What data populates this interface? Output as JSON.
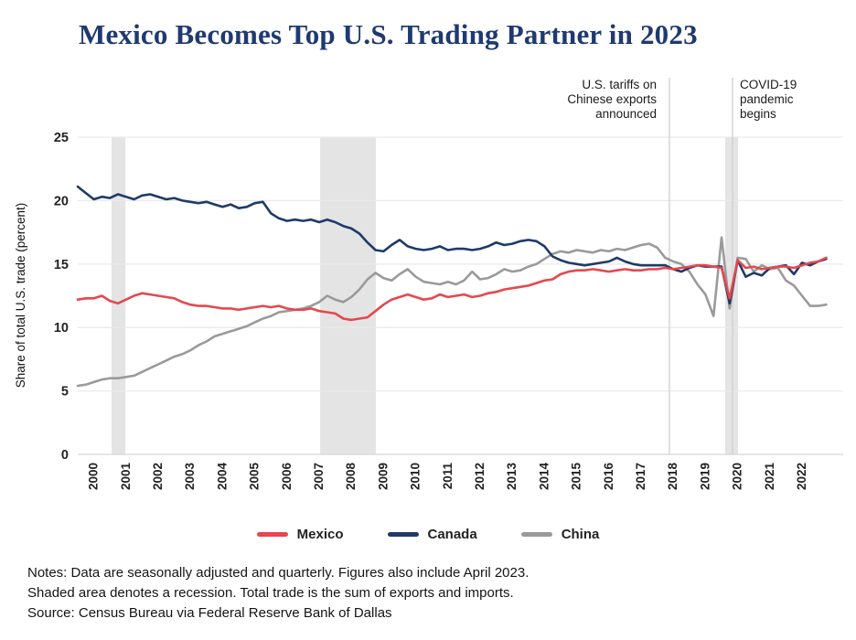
{
  "title": "Mexico Becomes Top U.S. Trading Partner in 2023",
  "chart_data": {
    "type": "line",
    "title": "Mexico Becomes Top U.S. Trading Partner in 2023",
    "xlabel": "",
    "ylabel": "Share of total U.S. trade (percent)",
    "ylim": [
      0,
      25
    ],
    "yticks": [
      0,
      5,
      10,
      15,
      20,
      25
    ],
    "xtick_years": [
      2000,
      2001,
      2002,
      2003,
      2004,
      2005,
      2006,
      2007,
      2008,
      2009,
      2010,
      2011,
      2012,
      2013,
      2014,
      2015,
      2016,
      2017,
      2018,
      2019,
      2020,
      2021,
      2022
    ],
    "x_start": 2000.0,
    "x_step": 0.25,
    "grid": "horizontal",
    "legend_position": "bottom",
    "recessions": [
      [
        2001.05,
        2001.48
      ],
      [
        2007.53,
        2009.26
      ],
      [
        2020.11,
        2020.51
      ]
    ],
    "annotations": [
      {
        "label": "U.S. tariffs on\nChinese exports\nannounced",
        "x": 2018.38,
        "align": "right"
      },
      {
        "label": "COVID-19\npandemic\nbegins",
        "x": 2020.34,
        "align": "left"
      }
    ],
    "series": [
      {
        "name": "China",
        "color": "#9a9a9a",
        "values": [
          5.4,
          5.5,
          5.7,
          5.9,
          6.0,
          6.0,
          6.1,
          6.2,
          6.5,
          6.8,
          7.1,
          7.4,
          7.7,
          7.9,
          8.2,
          8.6,
          8.9,
          9.3,
          9.5,
          9.7,
          9.9,
          10.1,
          10.4,
          10.7,
          10.9,
          11.2,
          11.3,
          11.4,
          11.5,
          11.7,
          12.0,
          12.5,
          12.2,
          12.0,
          12.4,
          13.0,
          13.8,
          14.3,
          13.9,
          13.7,
          14.2,
          14.6,
          14.0,
          13.6,
          13.5,
          13.4,
          13.6,
          13.4,
          13.7,
          14.4,
          13.8,
          13.9,
          14.2,
          14.6,
          14.4,
          14.5,
          14.8,
          15.0,
          15.4,
          15.8,
          16.0,
          15.9,
          16.1,
          16.0,
          15.9,
          16.1,
          16.0,
          16.2,
          16.1,
          16.3,
          16.5,
          16.6,
          16.3,
          15.5,
          15.2,
          15.0,
          14.4,
          13.4,
          12.6,
          10.9,
          17.1,
          11.5,
          15.5,
          15.4,
          14.4,
          14.9,
          14.6,
          14.7,
          13.7,
          13.3,
          12.5,
          11.7,
          11.7,
          11.8
        ]
      },
      {
        "name": "Canada",
        "color": "#1f3a68",
        "values": [
          21.1,
          20.6,
          20.1,
          20.3,
          20.2,
          20.5,
          20.3,
          20.1,
          20.4,
          20.5,
          20.3,
          20.1,
          20.2,
          20.0,
          19.9,
          19.8,
          19.9,
          19.7,
          19.5,
          19.7,
          19.4,
          19.5,
          19.8,
          19.9,
          19.0,
          18.6,
          18.4,
          18.5,
          18.4,
          18.5,
          18.3,
          18.5,
          18.3,
          18.0,
          17.8,
          17.4,
          16.7,
          16.1,
          16.0,
          16.5,
          16.9,
          16.4,
          16.2,
          16.1,
          16.2,
          16.4,
          16.1,
          16.2,
          16.2,
          16.1,
          16.2,
          16.4,
          16.7,
          16.5,
          16.6,
          16.8,
          16.9,
          16.8,
          16.4,
          15.6,
          15.3,
          15.1,
          15.0,
          14.9,
          15.0,
          15.1,
          15.2,
          15.5,
          15.2,
          15.0,
          14.9,
          14.9,
          14.9,
          14.9,
          14.6,
          14.4,
          14.7,
          14.9,
          14.8,
          14.8,
          14.8,
          11.9,
          15.3,
          14.0,
          14.3,
          14.1,
          14.7,
          14.8,
          14.9,
          14.2,
          15.1,
          14.9,
          15.2,
          15.4
        ]
      },
      {
        "name": "Mexico",
        "color": "#e5484e",
        "values": [
          12.2,
          12.3,
          12.3,
          12.5,
          12.1,
          11.9,
          12.2,
          12.5,
          12.7,
          12.6,
          12.5,
          12.4,
          12.3,
          12.0,
          11.8,
          11.7,
          11.7,
          11.6,
          11.5,
          11.5,
          11.4,
          11.5,
          11.6,
          11.7,
          11.6,
          11.7,
          11.5,
          11.4,
          11.4,
          11.5,
          11.3,
          11.2,
          11.1,
          10.7,
          10.6,
          10.7,
          10.8,
          11.3,
          11.8,
          12.2,
          12.4,
          12.6,
          12.4,
          12.2,
          12.3,
          12.6,
          12.4,
          12.5,
          12.6,
          12.4,
          12.5,
          12.7,
          12.8,
          13.0,
          13.1,
          13.2,
          13.3,
          13.5,
          13.7,
          13.8,
          14.2,
          14.4,
          14.5,
          14.5,
          14.6,
          14.5,
          14.4,
          14.5,
          14.6,
          14.5,
          14.5,
          14.6,
          14.6,
          14.7,
          14.6,
          14.7,
          14.8,
          14.9,
          14.9,
          14.8,
          14.7,
          12.3,
          15.3,
          14.7,
          14.8,
          14.6,
          14.7,
          14.8,
          14.8,
          14.7,
          14.9,
          15.1,
          15.2,
          15.5
        ]
      }
    ]
  },
  "legend": {
    "items": [
      {
        "label": "Mexico",
        "color": "#e5484e"
      },
      {
        "label": "Canada",
        "color": "#1f3a68"
      },
      {
        "label": "China",
        "color": "#9a9a9a"
      }
    ]
  },
  "notes": {
    "line1": "Notes: Data are seasonally adjusted and quarterly. Figures also include April 2023.",
    "line2": "Shaded area denotes a recession. Total trade is the sum of exports and imports.",
    "line3": "Source: Census Bureau via Federal Reserve Bank of Dallas"
  },
  "colors": {
    "title": "#1f3a70",
    "recession_band": "#e4e4e4",
    "gridline": "#eaeaea",
    "baseline": "#d5d5d5",
    "annotation_line": "#cfcfcf",
    "tick_text": "#222222"
  }
}
